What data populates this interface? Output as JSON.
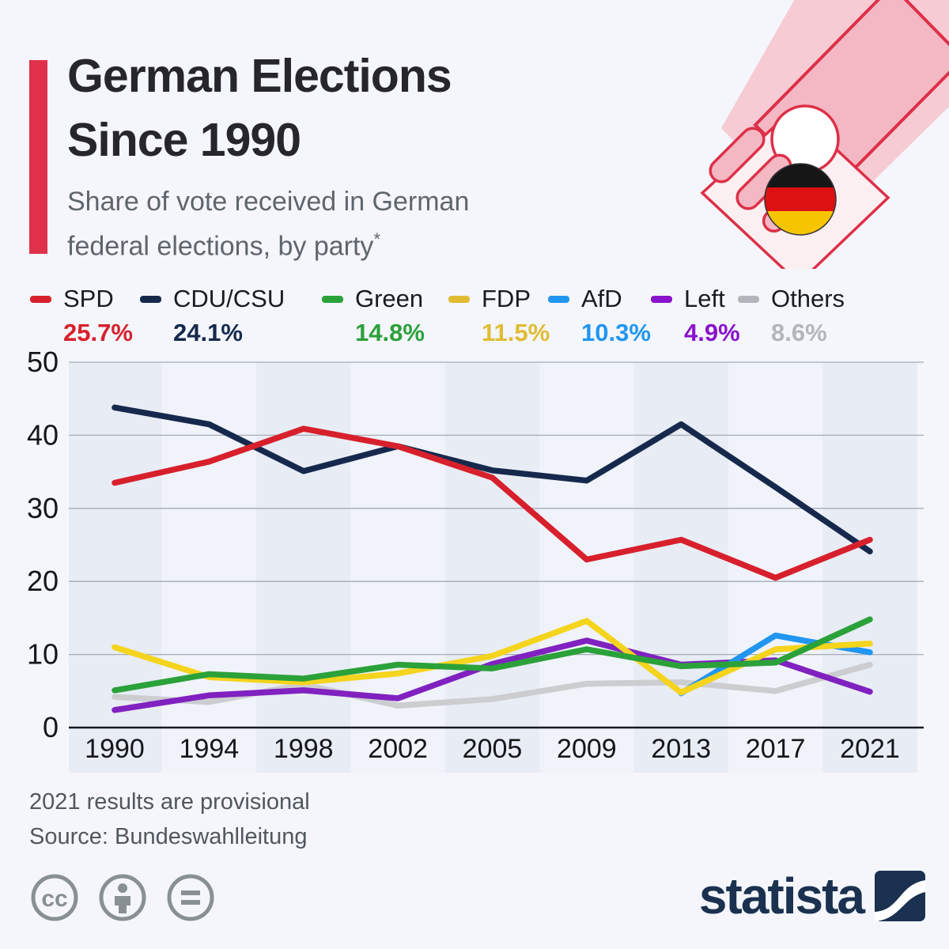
{
  "header": {
    "title_line1": "German Elections",
    "title_line2": "Since 1990",
    "subtitle_line1": "Share of vote received in German",
    "subtitle_line2": "federal elections, by party",
    "subtitle_asterisk": "*",
    "accent_color": "#e0314b"
  },
  "legend": [
    {
      "label": "SPD",
      "value": "25.7%",
      "color": "#d7202c"
    },
    {
      "label": "CDU/CSU",
      "value": "24.1%",
      "color": "#16294d"
    },
    {
      "label": "Green",
      "value": "14.8%",
      "color": "#2ba13a"
    },
    {
      "label": "FDP",
      "value": "11.5%",
      "color": "#e0bc33"
    },
    {
      "label": "AfD",
      "value": "10.3%",
      "color": "#2196f0"
    },
    {
      "label": "Left",
      "value": "4.9%",
      "color": "#8913cb"
    },
    {
      "label": "Others",
      "value": "8.6%",
      "color": "#b2b6bc"
    }
  ],
  "chart_data": {
    "type": "line",
    "title": "German Elections Since 1990",
    "subtitle": "Share of vote received in German federal elections, by party*",
    "x": [
      1990,
      1994,
      1998,
      2002,
      2005,
      2009,
      2013,
      2017,
      2021
    ],
    "xlabel": "",
    "ylabel": "",
    "ylim": [
      0,
      50
    ],
    "yticks": [
      0,
      10,
      20,
      30,
      40,
      50
    ],
    "grid": true,
    "legend_position": "top",
    "series": [
      {
        "name": "SPD",
        "color": "#d7202c",
        "values": [
          33.5,
          36.4,
          40.9,
          38.5,
          34.2,
          23.0,
          25.7,
          20.5,
          25.7
        ]
      },
      {
        "name": "CDU/CSU",
        "color": "#16294d",
        "values": [
          43.8,
          41.5,
          35.1,
          38.5,
          35.2,
          33.8,
          41.5,
          32.9,
          24.1
        ]
      },
      {
        "name": "Green",
        "color": "#2ba13a",
        "values": [
          5.1,
          7.3,
          6.7,
          8.6,
          8.1,
          10.7,
          8.4,
          8.9,
          14.8
        ]
      },
      {
        "name": "FDP",
        "color": "#f4d41c",
        "values": [
          11.0,
          6.9,
          6.2,
          7.4,
          9.8,
          14.6,
          4.8,
          10.7,
          11.5
        ]
      },
      {
        "name": "AfD",
        "color": "#2196f0",
        "values": [
          null,
          null,
          null,
          null,
          null,
          null,
          4.7,
          12.6,
          10.3
        ]
      },
      {
        "name": "Left",
        "color": "#8021c0",
        "values": [
          2.4,
          4.4,
          5.1,
          4.0,
          8.7,
          11.9,
          8.6,
          9.2,
          4.9
        ]
      },
      {
        "name": "Others",
        "color": "#cbcdd0",
        "values": [
          4.2,
          3.5,
          5.9,
          3.0,
          3.9,
          6.0,
          6.2,
          5.0,
          8.6
        ]
      }
    ]
  },
  "footnotes": {
    "0": "2021 results are provisional",
    "1": "Source: Bundeswahlleitung"
  },
  "branding": {
    "logo_text": "statista",
    "cc_icon_names": "cc-icon attribution-icon no-derivatives-icon"
  }
}
